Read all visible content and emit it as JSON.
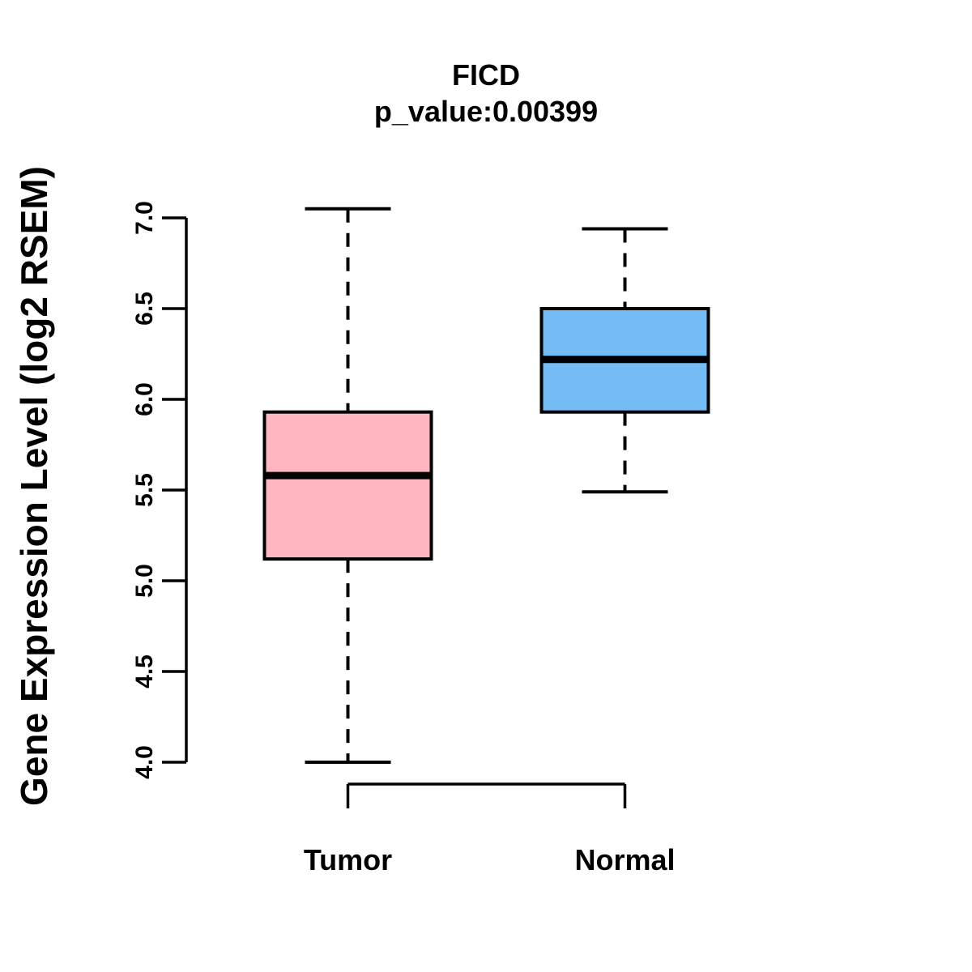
{
  "figure": {
    "background": "#ffffff"
  },
  "chart_data": {
    "type": "boxplot",
    "title": "FICD",
    "subtitle": "p_value:0.00399",
    "ylabel": "Gene Expression Level (log2 RSEM)",
    "xlabel": "",
    "categories": [
      "Tumor",
      "Normal"
    ],
    "ylim": [
      4.0,
      7.0
    ],
    "yticks": [
      4.0,
      4.5,
      5.0,
      5.5,
      6.0,
      6.5,
      7.0
    ],
    "ytick_labels": [
      "4.0",
      "4.5",
      "5.0",
      "5.5",
      "6.0",
      "6.5",
      "7.0"
    ],
    "grid": false,
    "legend": "none",
    "whisker_style": "dashed",
    "series": [
      {
        "name": "Tumor",
        "color": "#FFB6C1",
        "border_color": "#000000",
        "whisker_low": 4.0,
        "q1": 5.12,
        "median": 5.58,
        "q3": 5.93,
        "whisker_high": 7.05
      },
      {
        "name": "Normal",
        "color": "#73BDF4",
        "border_color": "#000000",
        "whisker_low": 5.49,
        "q1": 5.93,
        "median": 6.22,
        "q3": 6.5,
        "whisker_high": 6.94
      }
    ]
  }
}
